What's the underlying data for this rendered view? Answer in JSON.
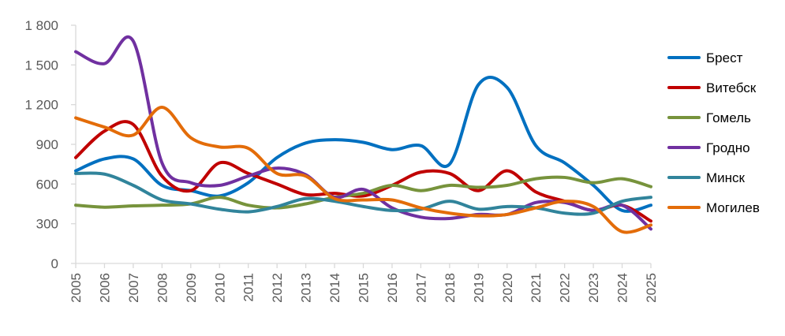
{
  "chart_data": {
    "type": "line",
    "title": "",
    "xlabel": "",
    "ylabel": "",
    "x": [
      "2005",
      "2006",
      "2007",
      "2008",
      "2009",
      "2010",
      "2011",
      "2012",
      "2013",
      "2014",
      "2015",
      "2016",
      "2017",
      "2018",
      "2019",
      "2020",
      "2021",
      "2022",
      "2023",
      "2024",
      "2025"
    ],
    "ylim": [
      0,
      1800
    ],
    "yticks": [
      0,
      300,
      600,
      900,
      1200,
      1500,
      1800
    ],
    "ytick_labels": [
      "0",
      "300",
      "600",
      "900",
      "1 200",
      "1 500",
      "1 800"
    ],
    "grid": false,
    "smooth": true,
    "legend_position": "right",
    "series": [
      {
        "name": "Брест",
        "color": "#0070C0",
        "values": [
          700,
          790,
          790,
          590,
          550,
          510,
          610,
          800,
          910,
          935,
          915,
          860,
          890,
          750,
          1350,
          1330,
          890,
          760,
          590,
          400,
          440
        ]
      },
      {
        "name": "Витебск",
        "color": "#C00000",
        "values": [
          800,
          1000,
          1050,
          660,
          550,
          760,
          680,
          600,
          520,
          530,
          510,
          590,
          690,
          680,
          550,
          700,
          540,
          470,
          400,
          440,
          320
        ]
      },
      {
        "name": "Гомель",
        "color": "#77933C",
        "values": [
          440,
          425,
          435,
          440,
          450,
          500,
          440,
          420,
          450,
          500,
          530,
          590,
          550,
          590,
          575,
          590,
          640,
          650,
          610,
          640,
          580
        ]
      },
      {
        "name": "Гродно",
        "color": "#7030A0",
        "values": [
          1600,
          1510,
          1680,
          760,
          610,
          590,
          660,
          720,
          670,
          500,
          560,
          420,
          350,
          340,
          370,
          370,
          460,
          460,
          400,
          440,
          260
        ]
      },
      {
        "name": "Минск",
        "color": "#31849B",
        "values": [
          680,
          675,
          590,
          480,
          450,
          410,
          390,
          430,
          490,
          470,
          430,
          400,
          410,
          470,
          410,
          430,
          420,
          380,
          380,
          470,
          500
        ]
      },
      {
        "name": "Могилев",
        "color": "#E36C09",
        "values": [
          1100,
          1030,
          970,
          1180,
          950,
          880,
          870,
          680,
          660,
          490,
          480,
          480,
          420,
          380,
          360,
          370,
          420,
          470,
          430,
          240,
          290
        ]
      }
    ]
  }
}
